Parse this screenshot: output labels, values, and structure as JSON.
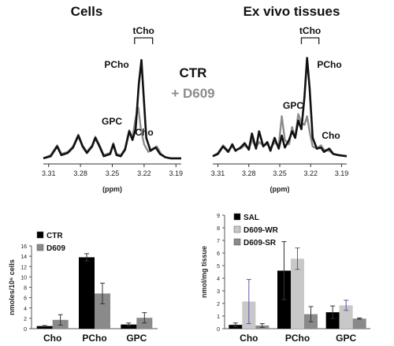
{
  "figure": {
    "left_title": "Cells",
    "right_title": "Ex vivo tissues",
    "legend_ctr": "CTR",
    "legend_d609": "+ D609",
    "colors": {
      "ctr": "#111111",
      "d609": "#8c8c8c",
      "bar_black": "#000000",
      "bar_light": "#c8c8c8",
      "bar_dark": "#8a8a8a",
      "error": "#333333",
      "error_blue": "#5a5aa8"
    }
  },
  "chart_data": [
    {
      "type": "line",
      "panel": "cells-spectrum",
      "title": "Cells",
      "xlabel": "(ppm)",
      "x_ticks": [
        "3.31",
        "3.28",
        "3.25",
        "3.22",
        "3.19"
      ],
      "xlim": [
        3.315,
        3.185
      ],
      "bracket_label": "tCho",
      "peak_labels": [
        "PCho",
        "GPC",
        "Cho"
      ],
      "series": [
        {
          "name": "CTR",
          "color": "#111111",
          "points": [
            [
              3.315,
              0.03
            ],
            [
              3.308,
              0.05
            ],
            [
              3.302,
              0.14
            ],
            [
              3.298,
              0.06
            ],
            [
              3.292,
              0.08
            ],
            [
              3.287,
              0.13
            ],
            [
              3.282,
              0.24
            ],
            [
              3.278,
              0.14
            ],
            [
              3.274,
              0.08
            ],
            [
              3.269,
              0.14
            ],
            [
              3.266,
              0.22
            ],
            [
              3.262,
              0.14
            ],
            [
              3.258,
              0.05
            ],
            [
              3.252,
              0.07
            ],
            [
              3.249,
              0.16
            ],
            [
              3.246,
              0.06
            ],
            [
              3.242,
              0.05
            ],
            [
              3.238,
              0.11
            ],
            [
              3.234,
              0.28
            ],
            [
              3.231,
              0.2
            ],
            [
              3.228,
              0.3
            ],
            [
              3.225,
              0.72
            ],
            [
              3.2225,
              0.94
            ],
            [
              3.2205,
              0.62
            ],
            [
              3.218,
              0.22
            ],
            [
              3.214,
              0.1
            ],
            [
              3.209,
              0.13
            ],
            [
              3.205,
              0.07
            ],
            [
              3.2,
              0.04
            ],
            [
              3.195,
              0.03
            ],
            [
              3.185,
              0.03
            ]
          ]
        },
        {
          "name": "+ D609",
          "color": "#8c8c8c",
          "points": [
            [
              3.315,
              0.03
            ],
            [
              3.308,
              0.06
            ],
            [
              3.302,
              0.15
            ],
            [
              3.298,
              0.07
            ],
            [
              3.292,
              0.09
            ],
            [
              3.287,
              0.14
            ],
            [
              3.282,
              0.25
            ],
            [
              3.278,
              0.15
            ],
            [
              3.274,
              0.09
            ],
            [
              3.269,
              0.15
            ],
            [
              3.266,
              0.23
            ],
            [
              3.262,
              0.15
            ],
            [
              3.258,
              0.06
            ],
            [
              3.252,
              0.08
            ],
            [
              3.249,
              0.17
            ],
            [
              3.246,
              0.07
            ],
            [
              3.242,
              0.06
            ],
            [
              3.238,
              0.12
            ],
            [
              3.234,
              0.29
            ],
            [
              3.231,
              0.22
            ],
            [
              3.228,
              0.4
            ],
            [
              3.2255,
              0.5
            ],
            [
              3.223,
              0.3
            ],
            [
              3.22,
              0.16
            ],
            [
              3.216,
              0.09
            ],
            [
              3.212,
              0.12
            ],
            [
              3.208,
              0.14
            ],
            [
              3.204,
              0.07
            ],
            [
              3.2,
              0.04
            ],
            [
              3.195,
              0.03
            ],
            [
              3.185,
              0.03
            ]
          ]
        }
      ]
    },
    {
      "type": "line",
      "panel": "tissue-spectrum",
      "title": "Ex vivo tissues",
      "xlabel": "(ppm)",
      "x_ticks": [
        "3.31",
        "3.28",
        "3.25",
        "3.22",
        "3.19"
      ],
      "xlim": [
        3.315,
        3.185
      ],
      "bracket_label": "tCho",
      "peak_labels": [
        "PCho",
        "GPC",
        "Cho"
      ],
      "series": [
        {
          "name": "CTR",
          "color": "#111111",
          "points": [
            [
              3.315,
              0.05
            ],
            [
              3.31,
              0.07
            ],
            [
              3.305,
              0.14
            ],
            [
              3.3,
              0.09
            ],
            [
              3.296,
              0.16
            ],
            [
              3.293,
              0.1
            ],
            [
              3.288,
              0.13
            ],
            [
              3.284,
              0.17
            ],
            [
              3.28,
              0.11
            ],
            [
              3.277,
              0.26
            ],
            [
              3.273,
              0.12
            ],
            [
              3.27,
              0.28
            ],
            [
              3.266,
              0.14
            ],
            [
              3.262,
              0.18
            ],
            [
              3.259,
              0.1
            ],
            [
              3.255,
              0.22
            ],
            [
              3.251,
              0.12
            ],
            [
              3.248,
              0.24
            ],
            [
              3.245,
              0.13
            ],
            [
              3.241,
              0.2
            ],
            [
              3.238,
              0.28
            ],
            [
              3.235,
              0.22
            ],
            [
              3.232,
              0.38
            ],
            [
              3.229,
              0.3
            ],
            [
              3.226,
              0.6
            ],
            [
              3.2235,
              0.96
            ],
            [
              3.221,
              0.68
            ],
            [
              3.218,
              0.22
            ],
            [
              3.214,
              0.12
            ],
            [
              3.21,
              0.13
            ],
            [
              3.207,
              0.09
            ],
            [
              3.202,
              0.12
            ],
            [
              3.198,
              0.07
            ],
            [
              3.193,
              0.06
            ],
            [
              3.185,
              0.05
            ]
          ]
        },
        {
          "name": "+ D609",
          "color": "#8c8c8c",
          "points": [
            [
              3.315,
              0.05
            ],
            [
              3.31,
              0.08
            ],
            [
              3.305,
              0.15
            ],
            [
              3.3,
              0.1
            ],
            [
              3.296,
              0.14
            ],
            [
              3.293,
              0.11
            ],
            [
              3.288,
              0.12
            ],
            [
              3.284,
              0.15
            ],
            [
              3.28,
              0.12
            ],
            [
              3.277,
              0.2
            ],
            [
              3.273,
              0.13
            ],
            [
              3.27,
              0.18
            ],
            [
              3.266,
              0.15
            ],
            [
              3.262,
              0.16
            ],
            [
              3.259,
              0.12
            ],
            [
              3.255,
              0.18
            ],
            [
              3.251,
              0.14
            ],
            [
              3.248,
              0.42
            ],
            [
              3.245,
              0.2
            ],
            [
              3.241,
              0.16
            ],
            [
              3.238,
              0.32
            ],
            [
              3.235,
              0.22
            ],
            [
              3.232,
              0.44
            ],
            [
              3.229,
              0.36
            ],
            [
              3.226,
              0.34
            ],
            [
              3.2235,
              0.42
            ],
            [
              3.221,
              0.28
            ],
            [
              3.218,
              0.14
            ],
            [
              3.214,
              0.12
            ],
            [
              3.21,
              0.15
            ],
            [
              3.207,
              0.11
            ],
            [
              3.202,
              0.1
            ],
            [
              3.198,
              0.07
            ],
            [
              3.193,
              0.06
            ],
            [
              3.185,
              0.05
            ]
          ]
        }
      ]
    },
    {
      "type": "bar",
      "panel": "cells-bar",
      "ylabel": "nmoles/10⁶ cells",
      "ylim": [
        0,
        16
      ],
      "y_ticks": [
        "0",
        "2",
        "4",
        "6",
        "8",
        "10",
        "12",
        "14",
        "16"
      ],
      "categories": [
        "Cho",
        "PCho",
        "GPC"
      ],
      "series": [
        {
          "name": "CTR",
          "color": "#000000",
          "values": [
            0.5,
            13.8,
            0.8
          ],
          "errors": [
            0.1,
            0.7,
            0.3
          ]
        },
        {
          "name": "D609",
          "color": "#8a8a8a",
          "values": [
            1.7,
            6.8,
            2.1
          ],
          "errors": [
            1.0,
            2.0,
            1.0
          ]
        }
      ]
    },
    {
      "type": "bar",
      "panel": "tissue-bar",
      "ylabel": "nmol/mg tissue",
      "ylim": [
        0,
        9
      ],
      "y_ticks": [
        "0",
        "1",
        "2",
        "3",
        "4",
        "5",
        "6",
        "7",
        "8",
        "9"
      ],
      "categories": [
        "Cho",
        "PCho",
        "GPC"
      ],
      "series": [
        {
          "name": "SAL",
          "color": "#000000",
          "values": [
            0.3,
            4.6,
            1.3
          ],
          "errors": [
            0.15,
            2.3,
            0.5
          ]
        },
        {
          "name": "D609-WR",
          "color": "#c8c8c8",
          "values": [
            2.15,
            5.55,
            1.85
          ],
          "errors": [
            1.75,
            0.85,
            0.4
          ]
        },
        {
          "name": "D609-SR",
          "color": "#8a8a8a",
          "values": [
            0.25,
            1.15,
            0.8
          ],
          "errors": [
            0.15,
            0.6,
            0.05
          ]
        }
      ]
    }
  ]
}
